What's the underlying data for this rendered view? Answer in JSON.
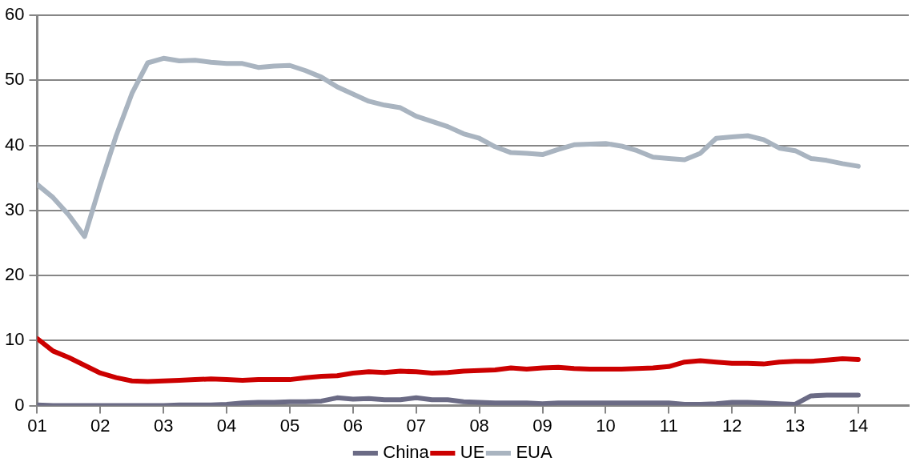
{
  "chart_data": {
    "type": "line",
    "x": [
      1,
      1.25,
      1.5,
      1.75,
      2,
      2.25,
      2.5,
      2.75,
      3,
      3.25,
      3.5,
      3.75,
      4,
      4.25,
      4.5,
      4.75,
      5,
      5.25,
      5.5,
      5.75,
      6,
      6.25,
      6.5,
      6.75,
      7,
      7.25,
      7.5,
      7.75,
      8,
      8.25,
      8.5,
      8.75,
      9,
      9.25,
      9.5,
      9.75,
      10,
      10.25,
      10.5,
      10.75,
      11,
      11.25,
      11.5,
      11.75,
      12,
      12.25,
      12.5,
      12.75,
      13,
      13.25,
      13.5,
      13.75,
      14
    ],
    "series": [
      {
        "name": "China",
        "color": "#6b6b85",
        "values": [
          0.1,
          0,
          0,
          0,
          0,
          0,
          0,
          0,
          0,
          0.1,
          0.1,
          0.1,
          0.2,
          0.4,
          0.5,
          0.5,
          0.6,
          0.6,
          0.7,
          1.2,
          1.0,
          1.1,
          0.9,
          0.9,
          1.2,
          0.9,
          0.9,
          0.6,
          0.5,
          0.4,
          0.4,
          0.4,
          0.3,
          0.4,
          0.4,
          0.4,
          0.4,
          0.4,
          0.4,
          0.4,
          0.4,
          0.2,
          0.2,
          0.3,
          0.5,
          0.5,
          0.4,
          0.3,
          0.2,
          1.5,
          1.6,
          1.6,
          1.6
        ]
      },
      {
        "name": "UE",
        "color": "#cc0000",
        "values": [
          10.3,
          8.4,
          7.4,
          6.2,
          5.0,
          4.3,
          3.8,
          3.7,
          3.8,
          3.9,
          4.0,
          4.1,
          4.0,
          3.9,
          4.0,
          4.0,
          4.0,
          4.3,
          4.5,
          4.6,
          5.0,
          5.2,
          5.1,
          5.3,
          5.2,
          5.0,
          5.1,
          5.3,
          5.4,
          5.5,
          5.8,
          5.6,
          5.8,
          5.9,
          5.7,
          5.6,
          5.6,
          5.6,
          5.7,
          5.8,
          6.0,
          6.7,
          6.9,
          6.7,
          6.5,
          6.5,
          6.4,
          6.7,
          6.8,
          6.8,
          7.0,
          7.2,
          7.1
        ]
      },
      {
        "name": "EUA",
        "color": "#a9b4c0",
        "values": [
          34,
          32,
          29.3,
          26,
          34,
          41.5,
          48,
          52.7,
          53.4,
          53,
          53.1,
          52.8,
          52.6,
          52.6,
          52,
          52.2,
          52.3,
          51.5,
          50.5,
          49,
          47.9,
          46.8,
          46.2,
          45.8,
          44.5,
          43.7,
          42.9,
          41.8,
          41.1,
          39.8,
          38.9,
          38.8,
          38.6,
          39.4,
          40.1,
          40.2,
          40.3,
          39.9,
          39.2,
          38.2,
          38,
          37.8,
          38.8,
          41.1,
          41.3,
          41.5,
          40.9,
          39.6,
          39.2,
          38,
          37.7,
          37.2,
          36.8
        ]
      }
    ],
    "xlim": [
      1,
      14.8
    ],
    "xticks": [
      {
        "value": 1,
        "label": "01"
      },
      {
        "value": 2,
        "label": "02"
      },
      {
        "value": 3,
        "label": "03"
      },
      {
        "value": 4,
        "label": "04"
      },
      {
        "value": 5,
        "label": "05"
      },
      {
        "value": 6,
        "label": "06"
      },
      {
        "value": 7,
        "label": "07"
      },
      {
        "value": 8,
        "label": "08"
      },
      {
        "value": 9,
        "label": "09"
      },
      {
        "value": 10,
        "label": "10"
      },
      {
        "value": 11,
        "label": "11"
      },
      {
        "value": 12,
        "label": "12"
      },
      {
        "value": 13,
        "label": "13"
      },
      {
        "value": 14,
        "label": "14"
      }
    ],
    "ylim": [
      0,
      60
    ],
    "yticks": [
      0,
      10,
      20,
      30,
      40,
      50,
      60
    ],
    "grid": "y",
    "legend": "bottom",
    "marker": "none",
    "line_style": "solid"
  }
}
